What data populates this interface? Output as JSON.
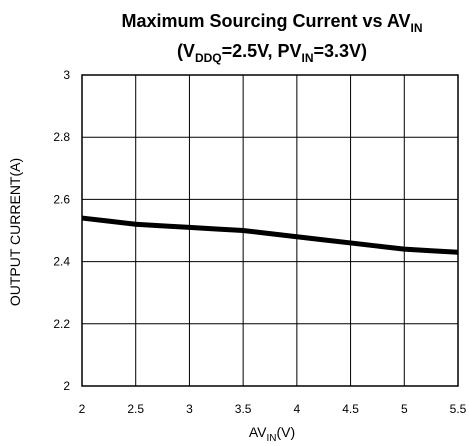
{
  "chart_data": {
    "type": "line",
    "title_main": "Maximum Sourcing Current vs AV",
    "title_main_sub": "IN",
    "title_line2_open": "(V",
    "title_line2_sub1": "DDQ",
    "title_line2_mid": "=2.5V, PV",
    "title_line2_sub2": "IN",
    "title_line2_close": "=3.3V)",
    "xlabel_main": "AV",
    "xlabel_sub": "IN",
    "xlabel_unit": "(V)",
    "ylabel": "OUTPUT CURRENT(A)",
    "xlim": [
      2,
      5.5
    ],
    "ylim": [
      2,
      3
    ],
    "x_ticks": [
      2,
      2.5,
      3,
      3.5,
      4,
      4.5,
      5,
      5.5
    ],
    "x_tick_labels": [
      "2",
      "2.5",
      "3",
      "3.5",
      "4",
      "4.5",
      "5",
      "5.5"
    ],
    "y_ticks": [
      2,
      2.2,
      2.4,
      2.6,
      2.8,
      3
    ],
    "y_tick_labels": [
      "2",
      "2.2",
      "2.4",
      "2.6",
      "2.8",
      "3"
    ],
    "grid": true,
    "series": [
      {
        "x": [
          2,
          2.25,
          2.5,
          2.75,
          3,
          3.25,
          3.5,
          3.75,
          4,
          4.25,
          4.5,
          4.75,
          5,
          5.25,
          5.5
        ],
        "y": [
          2.54,
          2.53,
          2.52,
          2.515,
          2.51,
          2.505,
          2.5,
          2.49,
          2.48,
          2.47,
          2.46,
          2.45,
          2.44,
          2.435,
          2.43
        ],
        "color": "#000000"
      }
    ]
  }
}
